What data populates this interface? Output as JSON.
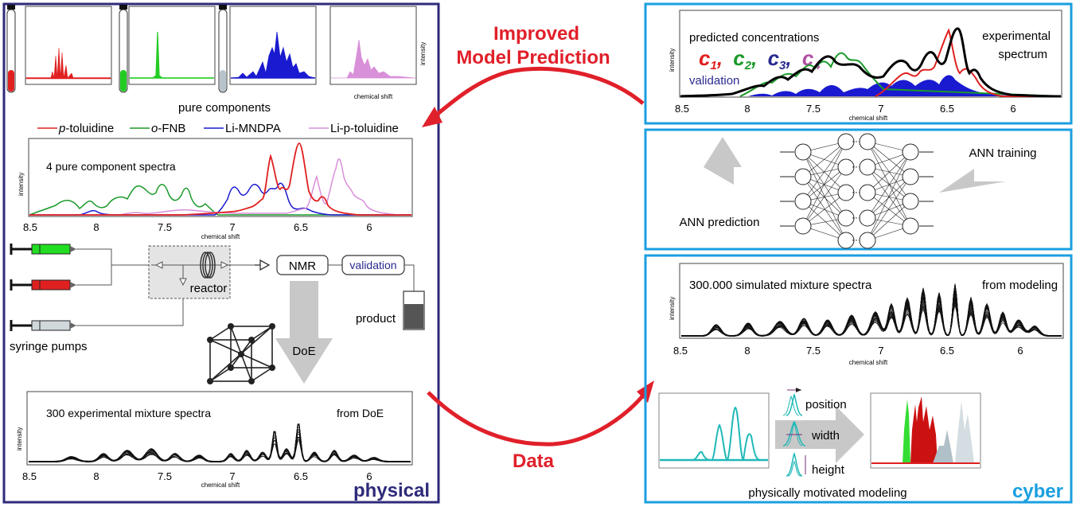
{
  "colors": {
    "physical_border": "#2e2a7a",
    "cyber_border": "#1a9fe0",
    "arrow_red": "#e0202a",
    "arrow_gray": "#c8c8c8",
    "p_toluidine": "#e02020",
    "o_fnb": "#1a9a2a",
    "li_mndpa": "#1a1ad0",
    "li_p_toluidine": "#d890d8",
    "teal": "#20b8b8",
    "validation_text": "#2a2a90"
  },
  "center": {
    "improved_line1": "Improved",
    "improved_line2": "Model Prediction",
    "data_label": "Data"
  },
  "physical": {
    "label": "physical",
    "pure_components_label": "pure components",
    "legend": [
      {
        "italic": "p",
        "rest": "-toluidine",
        "color": "#e02020"
      },
      {
        "italic": "o",
        "rest": "-FNB",
        "color": "#1a9a2a"
      },
      {
        "italic": "",
        "rest": "Li-MNDPA",
        "color": "#1a1ad0"
      },
      {
        "italic": "",
        "rest": "Li-p-toluidine",
        "color": "#d890d8"
      }
    ],
    "small_intensity": "intensity",
    "small_chemical_shift": "chemical shift",
    "pure_spectra_title": "4 pure component spectra",
    "axis_intensity": "intensity",
    "axis_chemical_shift": "chemical shift",
    "x_ticks": [
      "8.5",
      "8",
      "7.5",
      "7",
      "6.5",
      "6"
    ],
    "reactor_label": "reactor",
    "nmr_label": "NMR",
    "validation_label": "validation",
    "product_label": "product",
    "syringe_label": "syringe pumps",
    "doe_label": "DoE",
    "exp_title": "300 experimental mixture spectra",
    "exp_right": "from DoE"
  },
  "cyber": {
    "label": "cyber",
    "pred_title": "predicted concentrations",
    "exp_spectrum_line1": "experimental",
    "exp_spectrum_line2": "spectrum",
    "c_labels": [
      {
        "c": "c",
        "sub": "1",
        "sep": ",",
        "color": "#e02020"
      },
      {
        "c": "c",
        "sub": "2",
        "sep": ",",
        "color": "#1a9a2a"
      },
      {
        "c": "c",
        "sub": "3",
        "sep": ",",
        "color": "#2a2a90"
      },
      {
        "c": "c",
        "sub": "4",
        "sep": "",
        "color": "#b050a0"
      }
    ],
    "validation_label": "validation",
    "ann_training": "ANN training",
    "ann_prediction": "ANN prediction",
    "sim_title": "300.000 simulated mixture spectra",
    "sim_right": "from modeling",
    "position_label": "position",
    "width_label": "width",
    "height_label": "height",
    "modeling_label": "physically motivated modeling",
    "axis_intensity": "intensity",
    "axis_chemical_shift": "chemical shift",
    "x_ticks": [
      "8.5",
      "8",
      "7.5",
      "7",
      "6.5",
      "6"
    ]
  }
}
